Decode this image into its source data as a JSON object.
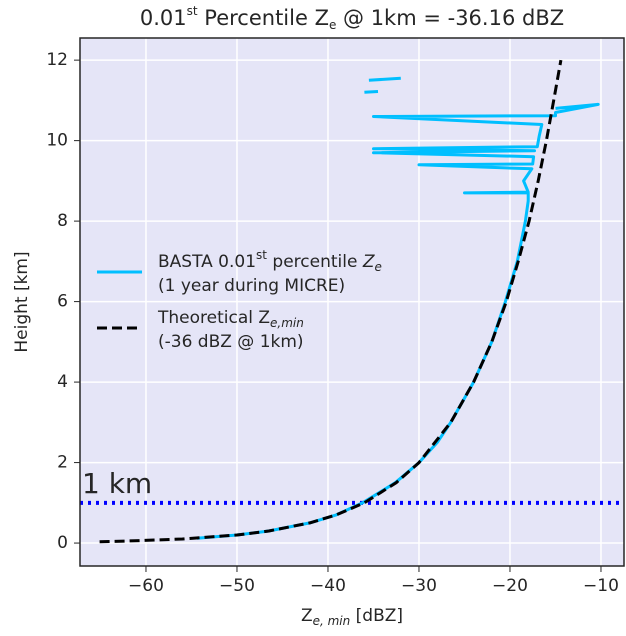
{
  "chart_data": {
    "type": "line",
    "title": [
      "0.01",
      "st",
      " Percentile Z",
      "e",
      " @ 1km = -36.16 dBZ"
    ],
    "xlabel": [
      "Z",
      "e, min",
      " [dBZ]"
    ],
    "ylabel": "Height [km]",
    "xlim": [
      -67.25,
      -7.47
    ],
    "ylim": [
      -0.57,
      12.55
    ],
    "xticks": [
      {
        "value": -60,
        "label": "−60"
      },
      {
        "value": -50,
        "label": "−50"
      },
      {
        "value": -40,
        "label": "−40"
      },
      {
        "value": -30,
        "label": "−30"
      },
      {
        "value": -20,
        "label": "−20"
      },
      {
        "value": -10,
        "label": "−10"
      }
    ],
    "yticks": [
      0,
      2,
      4,
      6,
      8,
      10,
      12
    ],
    "grid": true,
    "background": "#e5e5f7",
    "hline": {
      "value": 1,
      "label": "1 km",
      "color": "#0000ff"
    },
    "series": [
      {
        "name": [
          [
            "BASTA 0.01",
            "st",
            " percentile ",
            "Z",
            "e"
          ],
          [
            "(1 year during MICRE)"
          ]
        ],
        "color": "#00bfff",
        "dash": false,
        "x": [
          -54.4,
          -50,
          -46.5,
          -42,
          -39.1,
          -36.2,
          -32.6,
          -30,
          -28,
          -26.5,
          -24,
          -22,
          -20.5,
          -19.2,
          -18.3,
          -18,
          -18,
          -25,
          -18,
          -18.5,
          -17.6,
          -30,
          -17.5,
          -17.4,
          -35,
          -17.3,
          -35,
          -17,
          -16.8,
          -16.5,
          -35,
          -15,
          -15,
          -10.3,
          -15,
          null,
          -36,
          -34.5,
          null,
          -35.5,
          -32
        ],
        "y": [
          0.12,
          0.2,
          0.3,
          0.5,
          0.7,
          1,
          1.5,
          2,
          2.5,
          3,
          4,
          5,
          6,
          7,
          8,
          8.5,
          8.7,
          8.7,
          8.72,
          9,
          9.3,
          9.4,
          9.42,
          9.6,
          9.7,
          9.75,
          9.8,
          9.85,
          10.1,
          10.4,
          10.6,
          10.62,
          10.7,
          10.9,
          10.8,
          null,
          11.2,
          11.22,
          null,
          11.5,
          11.55
        ]
      },
      {
        "name": [
          [
            "Theoretical Z",
            "e,min"
          ],
          [
            "(-36 dBZ @ 1km)"
          ]
        ],
        "color": "#000000",
        "dash": true,
        "x": [
          -65.1,
          -62,
          -56,
          -50,
          -46.5,
          -42,
          -39.1,
          -36,
          -32.5,
          -30,
          -26.5,
          -24,
          -22,
          -20.4,
          -19.1,
          -17.9,
          -16.9,
          -16,
          -15.2,
          -14.4
        ],
        "y": [
          0.035,
          0.05,
          0.1,
          0.2,
          0.3,
          0.5,
          0.7,
          1,
          1.5,
          2,
          3,
          4,
          5,
          6,
          7,
          8,
          9,
          10,
          11,
          12
        ]
      }
    ]
  }
}
